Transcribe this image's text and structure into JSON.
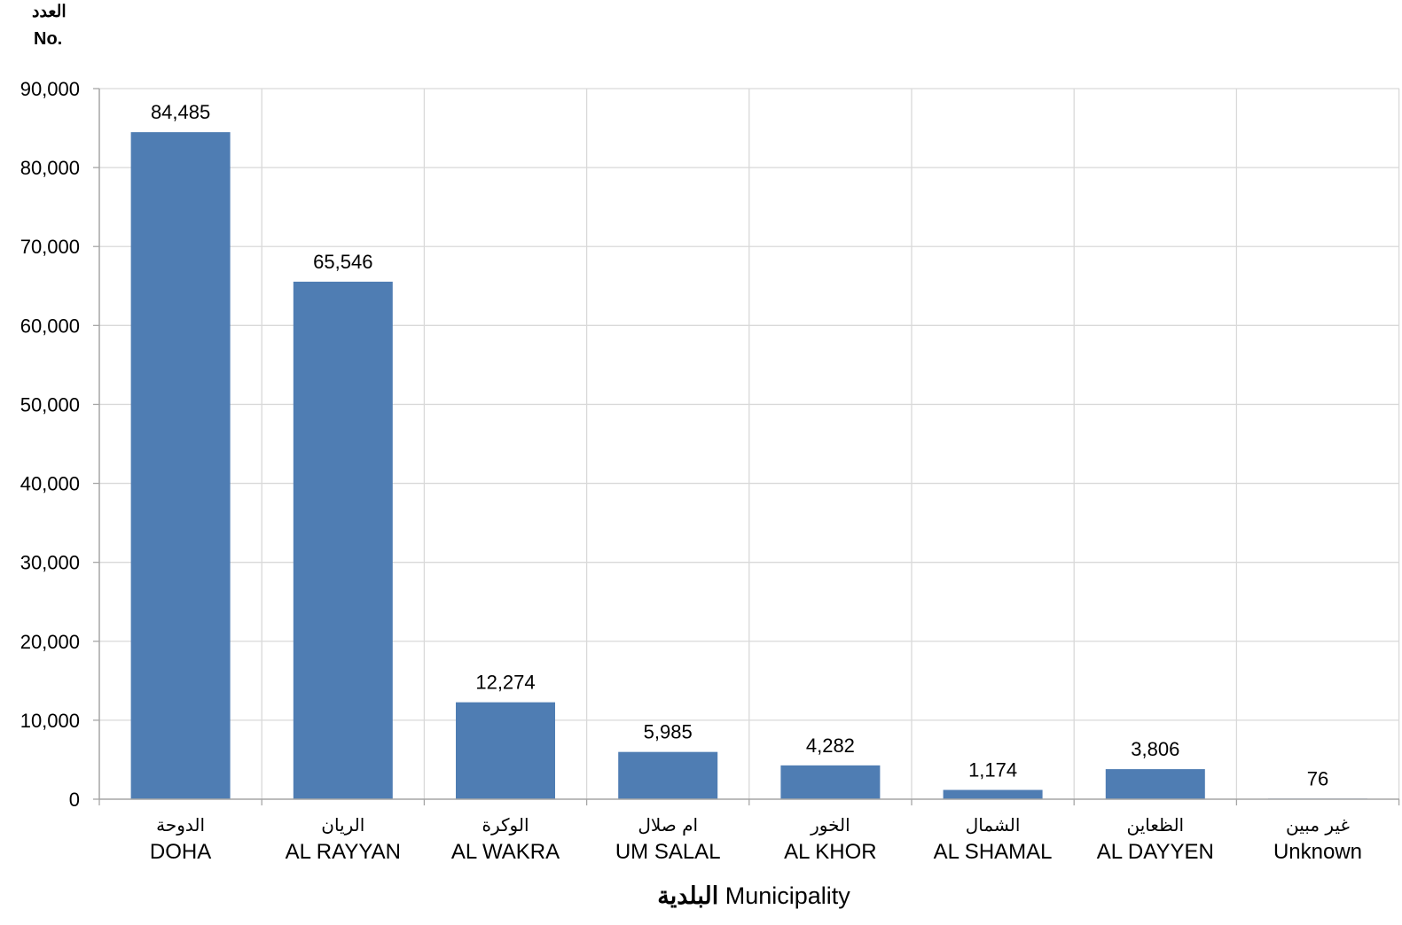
{
  "chart_data": {
    "type": "bar",
    "ylabel_ar": "العدد",
    "ylabel_en": "No.",
    "xlabel_ar": "البلدية",
    "xlabel_en": "Municipality",
    "categories": [
      {
        "ar": "الدوحة",
        "en": "DOHA"
      },
      {
        "ar": "الريان",
        "en": "AL RAYYAN"
      },
      {
        "ar": "الوكرة",
        "en": "AL WAKRA"
      },
      {
        "ar": "ام صلال",
        "en": "UM SALAL"
      },
      {
        "ar": "الخور",
        "en": "AL KHOR"
      },
      {
        "ar": "الشمال",
        "en": "AL SHAMAL"
      },
      {
        "ar": "الظعاين",
        "en": "AL DAYYEN"
      },
      {
        "ar": "غير مبين",
        "en": "Unknown"
      }
    ],
    "values": [
      84485,
      65546,
      12274,
      5985,
      4282,
      1174,
      3806,
      76
    ],
    "value_labels": [
      "84,485",
      "65,546",
      "12,274",
      "5,985",
      "4,282",
      "1,174",
      "3,806",
      "76"
    ],
    "ylim": [
      0,
      90000
    ],
    "yticks": [
      0,
      10000,
      20000,
      30000,
      40000,
      50000,
      60000,
      70000,
      80000,
      90000
    ],
    "ytick_labels": [
      "0",
      "10,000",
      "20,000",
      "30,000",
      "40,000",
      "50,000",
      "60,000",
      "70,000",
      "80,000",
      "90,000"
    ],
    "grid": true,
    "bar_color": "#4f7db3",
    "grid_color": "#d9d9d9",
    "axis_color": "#a6a6a6"
  }
}
